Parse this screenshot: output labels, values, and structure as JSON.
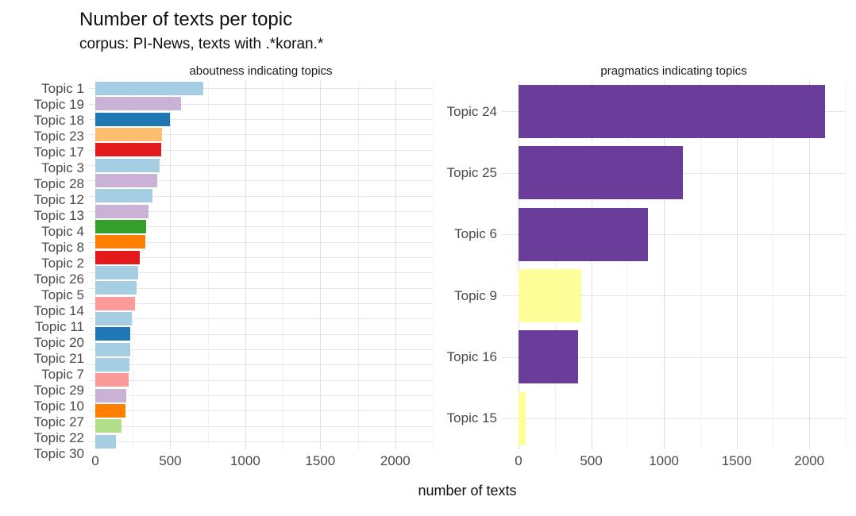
{
  "header": {
    "title": "Number of texts per topic",
    "subtitle": "corpus: PI-News, texts with .*koran.*"
  },
  "chart_data": {
    "type": "bar",
    "orientation": "horizontal",
    "title": "Number of texts per topic",
    "subtitle": "corpus: PI-News, texts with .*koran.*",
    "xlabel": "number of texts",
    "xlim": [
      0,
      2250
    ],
    "x_ticks": [
      0,
      500,
      1000,
      1500,
      2000
    ],
    "minor_step": 250,
    "major_step": 500,
    "grid": true,
    "colors_legend": {
      "light_blue": "#A6CEE3",
      "dark_blue": "#1F78B4",
      "light_green": "#B2DF8A",
      "green": "#33A02C",
      "pink": "#FB9A99",
      "red": "#E31A1C",
      "light_orange": "#FDBF6F",
      "orange": "#FF7F00",
      "light_purple": "#CAB2D6",
      "purple": "#6A3D9A",
      "yellow": "#FFFF99"
    },
    "panels": [
      {
        "facet": "aboutness indicating topics",
        "categories": [
          "Topic 1",
          "Topic 19",
          "Topic 18",
          "Topic 23",
          "Topic 17",
          "Topic 3",
          "Topic 28",
          "Topic 12",
          "Topic 13",
          "Topic 4",
          "Topic 8",
          "Topic 2",
          "Topic 26",
          "Topic 5",
          "Topic 14",
          "Topic 11",
          "Topic 20",
          "Topic 21",
          "Topic 7",
          "Topic 29",
          "Topic 10",
          "Topic 27",
          "Topic 22",
          "Topic 30"
        ],
        "values": [
          720,
          570,
          497,
          445,
          440,
          430,
          415,
          380,
          355,
          340,
          335,
          295,
          285,
          275,
          265,
          245,
          235,
          232,
          228,
          222,
          207,
          200,
          177,
          135
        ],
        "colors": [
          "#A6CEE3",
          "#CAB2D6",
          "#1F78B4",
          "#FDBF6F",
          "#E31A1C",
          "#A6CEE3",
          "#CAB2D6",
          "#A6CEE3",
          "#CAB2D6",
          "#33A02C",
          "#FF7F00",
          "#E31A1C",
          "#A6CEE3",
          "#A6CEE3",
          "#FB9A99",
          "#A6CEE3",
          "#1F78B4",
          "#A6CEE3",
          "#A6CEE3",
          "#FB9A99",
          "#CAB2D6",
          "#FF7F00",
          "#B2DF8A",
          "#A6CEE3"
        ]
      },
      {
        "facet": "pragmatics indicating topics",
        "categories": [
          "Topic 24",
          "Topic 25",
          "Topic 6",
          "Topic 9",
          "Topic 16",
          "Topic 15"
        ],
        "values": [
          2110,
          1130,
          890,
          430,
          410,
          50
        ],
        "colors": [
          "#6A3D9A",
          "#6A3D9A",
          "#6A3D9A",
          "#FFFF99",
          "#6A3D9A",
          "#FFFF99"
        ]
      }
    ]
  }
}
